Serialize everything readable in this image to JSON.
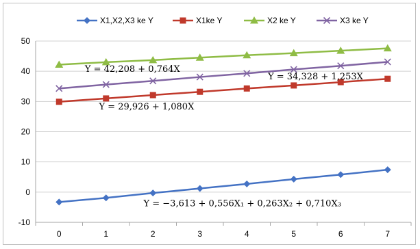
{
  "chart_data": {
    "type": "line",
    "x": [
      0,
      1,
      2,
      3,
      4,
      5,
      6,
      7
    ],
    "ylim": [
      -10,
      50
    ],
    "yticks": [
      -10,
      0,
      10,
      20,
      30,
      40,
      50
    ],
    "grid": true,
    "legend_position": "top",
    "series": [
      {
        "name": "X1,X2,X3 ke Y",
        "color": "#4472c4",
        "marker": "diamond",
        "values": [
          -3.3,
          -1.9,
          -0.3,
          1.2,
          2.7,
          4.3,
          5.8,
          7.4
        ]
      },
      {
        "name": "X1ke Y",
        "color": "#c0392b",
        "marker": "square",
        "values": [
          29.9,
          31.0,
          32.1,
          33.2,
          34.3,
          35.3,
          36.4,
          37.5
        ]
      },
      {
        "name": "X2 ke Y",
        "color": "#8fbc45",
        "marker": "triangle",
        "values": [
          42.2,
          43.0,
          43.7,
          44.5,
          45.3,
          46.0,
          46.8,
          47.6
        ]
      },
      {
        "name": "X3 ke Y",
        "color": "#8064a2",
        "marker": "x",
        "values": [
          34.3,
          35.6,
          36.8,
          38.1,
          39.3,
          40.6,
          41.8,
          43.1
        ]
      }
    ],
    "annotations": [
      {
        "text": "Y = 42,208 + 0,764X",
        "x": 0.55,
        "y": 39.8
      },
      {
        "text": "Y = 34,328 + 1,253X",
        "x": 4.45,
        "y": 37.3
      },
      {
        "text": "Y = 29,926 + 1,080X",
        "x": 0.85,
        "y": 27.4
      },
      {
        "text": "Y = −3,613 + 0,556X₁ + 0,263X₂ + 0,710X₃",
        "x": 1.8,
        "y": -4.7
      }
    ]
  }
}
